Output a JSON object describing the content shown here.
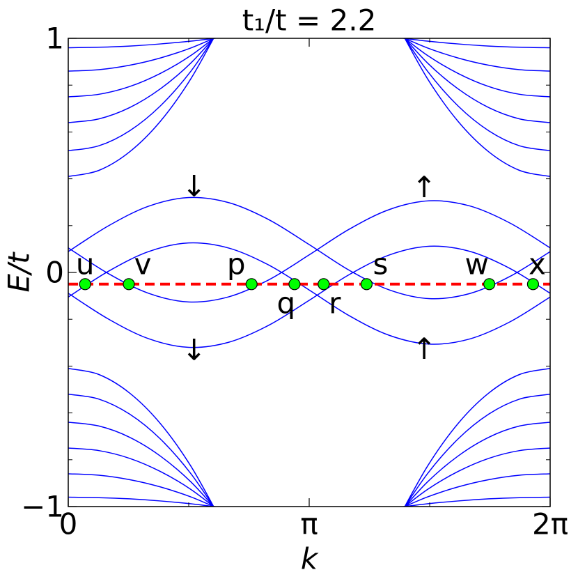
{
  "chart_data": {
    "type": "line",
    "title": "t₁/t = 2.2",
    "xlabel": "k",
    "ylabel": "E/t",
    "xlim": [
      0,
      6.2832
    ],
    "ylim": [
      -1,
      1
    ],
    "xticks": [
      0,
      {
        "value": 3.1416,
        "label": "π"
      },
      {
        "value": 6.2832,
        "label": "2π"
      }
    ],
    "xminorticks": [
      1.5708,
      4.7124
    ],
    "yticks": [
      {
        "value": -1,
        "label": "−1"
      },
      0,
      1
    ],
    "yminorticks": [
      -0.8,
      -0.6,
      -0.4,
      -0.2,
      0.2,
      0.4,
      0.6,
      0.8
    ],
    "line_color": "#0000ff",
    "x": [
      0,
      0.5236,
      1.0472,
      1.5708,
      2.0944,
      2.618,
      3.1416,
      3.6652,
      4.1888,
      4.7124,
      5.236,
      5.7596,
      6.2832
    ],
    "series": [
      {
        "values": [
          0.089,
          0.199,
          0.283,
          0.32,
          0.298,
          0.225,
          0.119,
          0.009,
          -0.075,
          -0.112,
          -0.09,
          -0.017,
          0.089
        ]
      },
      {
        "values": [
          -0.105,
          0.005,
          0.089,
          0.126,
          0.104,
          0.031,
          -0.075,
          -0.185,
          -0.269,
          -0.306,
          -0.284,
          -0.211,
          -0.105
        ]
      },
      {
        "values": [
          -0.089,
          -0.199,
          -0.283,
          -0.32,
          -0.298,
          -0.225,
          -0.119,
          -0.009,
          0.075,
          0.112,
          0.09,
          0.017,
          -0.089
        ]
      },
      {
        "values": [
          0.105,
          -0.005,
          -0.089,
          -0.126,
          -0.104,
          -0.031,
          0.075,
          0.185,
          0.269,
          0.306,
          0.284,
          0.211,
          0.105
        ]
      },
      {
        "x": [
          0,
          0.4,
          0.8,
          1.2,
          1.6,
          2.0
        ],
        "values": [
          0.96,
          0.962,
          0.967,
          0.976,
          0.988,
          1.004
        ]
      },
      {
        "x": [
          0,
          0.4,
          0.8,
          1.2,
          1.6,
          2.0
        ],
        "values": [
          0.86,
          0.866,
          0.885,
          0.916,
          0.959,
          1.015
        ]
      },
      {
        "x": [
          0,
          0.4,
          0.8,
          1.2,
          1.6,
          2.0
        ],
        "values": [
          0.75,
          0.761,
          0.794,
          0.85,
          0.927,
          1.027
        ]
      },
      {
        "x": [
          0,
          0.4,
          0.8,
          1.2,
          1.6,
          2.0
        ],
        "values": [
          0.64,
          0.656,
          0.704,
          0.784,
          0.895,
          1.039
        ]
      },
      {
        "x": [
          0,
          0.4,
          0.8,
          1.2,
          1.6,
          2.0
        ],
        "values": [
          0.52,
          0.541,
          0.605,
          0.711,
          0.86,
          1.052
        ]
      },
      {
        "x": [
          0,
          0.4,
          0.8,
          1.2,
          1.6,
          2.0
        ],
        "values": [
          0.41,
          0.436,
          0.515,
          0.645,
          0.828,
          1.064
        ]
      },
      {
        "x": [
          6.2832,
          5.8832,
          5.4832,
          5.0832,
          4.6832,
          4.2832
        ],
        "values": [
          0.96,
          0.962,
          0.967,
          0.976,
          0.988,
          1.004
        ]
      },
      {
        "x": [
          6.2832,
          5.8832,
          5.4832,
          5.0832,
          4.6832,
          4.2832
        ],
        "values": [
          0.86,
          0.866,
          0.885,
          0.916,
          0.959,
          1.015
        ]
      },
      {
        "x": [
          6.2832,
          5.8832,
          5.4832,
          5.0832,
          4.6832,
          4.2832
        ],
        "values": [
          0.75,
          0.761,
          0.794,
          0.85,
          0.927,
          1.027
        ]
      },
      {
        "x": [
          6.2832,
          5.8832,
          5.4832,
          5.0832,
          4.6832,
          4.2832
        ],
        "values": [
          0.64,
          0.656,
          0.704,
          0.784,
          0.895,
          1.039
        ]
      },
      {
        "x": [
          6.2832,
          5.8832,
          5.4832,
          5.0832,
          4.6832,
          4.2832
        ],
        "values": [
          0.52,
          0.541,
          0.605,
          0.711,
          0.86,
          1.052
        ]
      },
      {
        "x": [
          6.2832,
          5.8832,
          5.4832,
          5.0832,
          4.6832,
          4.2832
        ],
        "values": [
          0.41,
          0.436,
          0.515,
          0.645,
          0.828,
          1.064
        ]
      },
      {
        "x": [
          0,
          0.4,
          0.8,
          1.2,
          1.6,
          2.0
        ],
        "values": [
          -0.96,
          -0.962,
          -0.967,
          -0.976,
          -0.988,
          -1.004
        ]
      },
      {
        "x": [
          0,
          0.4,
          0.8,
          1.2,
          1.6,
          2.0
        ],
        "values": [
          -0.86,
          -0.866,
          -0.885,
          -0.916,
          -0.959,
          -1.015
        ]
      },
      {
        "x": [
          0,
          0.4,
          0.8,
          1.2,
          1.6,
          2.0
        ],
        "values": [
          -0.75,
          -0.761,
          -0.794,
          -0.85,
          -0.927,
          -1.027
        ]
      },
      {
        "x": [
          0,
          0.4,
          0.8,
          1.2,
          1.6,
          2.0
        ],
        "values": [
          -0.64,
          -0.656,
          -0.704,
          -0.784,
          -0.895,
          -1.039
        ]
      },
      {
        "x": [
          0,
          0.4,
          0.8,
          1.2,
          1.6,
          2.0
        ],
        "values": [
          -0.52,
          -0.541,
          -0.605,
          -0.711,
          -0.86,
          -1.052
        ]
      },
      {
        "x": [
          0,
          0.4,
          0.8,
          1.2,
          1.6,
          2.0
        ],
        "values": [
          -0.41,
          -0.436,
          -0.515,
          -0.645,
          -0.828,
          -1.064
        ]
      },
      {
        "x": [
          6.2832,
          5.8832,
          5.4832,
          5.0832,
          4.6832,
          4.2832
        ],
        "values": [
          -0.96,
          -0.962,
          -0.967,
          -0.976,
          -0.988,
          -1.004
        ]
      },
      {
        "x": [
          6.2832,
          5.8832,
          5.4832,
          5.0832,
          4.6832,
          4.2832
        ],
        "values": [
          -0.86,
          -0.866,
          -0.885,
          -0.916,
          -0.959,
          -1.015
        ]
      },
      {
        "x": [
          6.2832,
          5.8832,
          5.4832,
          5.0832,
          4.6832,
          4.2832
        ],
        "values": [
          -0.75,
          -0.761,
          -0.794,
          -0.85,
          -0.927,
          -1.027
        ]
      },
      {
        "x": [
          6.2832,
          5.8832,
          5.4832,
          5.0832,
          4.6832,
          4.2832
        ],
        "values": [
          -0.64,
          -0.656,
          -0.704,
          -0.784,
          -0.895,
          -1.039
        ]
      },
      {
        "x": [
          6.2832,
          5.8832,
          5.4832,
          5.0832,
          4.6832,
          4.2832
        ],
        "values": [
          -0.52,
          -0.541,
          -0.605,
          -0.711,
          -0.86,
          -1.052
        ]
      },
      {
        "x": [
          6.2832,
          5.8832,
          5.4832,
          5.0832,
          4.6832,
          4.2832
        ],
        "values": [
          -0.41,
          -0.436,
          -0.515,
          -0.645,
          -0.828,
          -1.064
        ]
      }
    ],
    "hline": {
      "y": -0.05,
      "color": "#ff0000"
    },
    "marker_color": "#00ff00",
    "markers": [
      {
        "label": "u",
        "x": 0.22,
        "y": -0.05
      },
      {
        "label": "v",
        "x": 0.79,
        "y": -0.05
      },
      {
        "label": "p",
        "x": 2.39,
        "y": -0.05
      },
      {
        "label": "q",
        "x": 2.95,
        "y": -0.05
      },
      {
        "label": "r",
        "x": 3.33,
        "y": -0.05
      },
      {
        "label": "s",
        "x": 3.89,
        "y": -0.05
      },
      {
        "label": "w",
        "x": 5.49,
        "y": -0.05
      },
      {
        "label": "x",
        "x": 6.06,
        "y": -0.05
      }
    ],
    "annotations": [
      {
        "text": "↓",
        "x": 1.64,
        "y": 0.36
      },
      {
        "text": "↓",
        "x": 1.64,
        "y": -0.34
      },
      {
        "text": "↑",
        "x": 4.64,
        "y": 0.355
      },
      {
        "text": "↑",
        "x": 4.64,
        "y": -0.335
      }
    ]
  }
}
